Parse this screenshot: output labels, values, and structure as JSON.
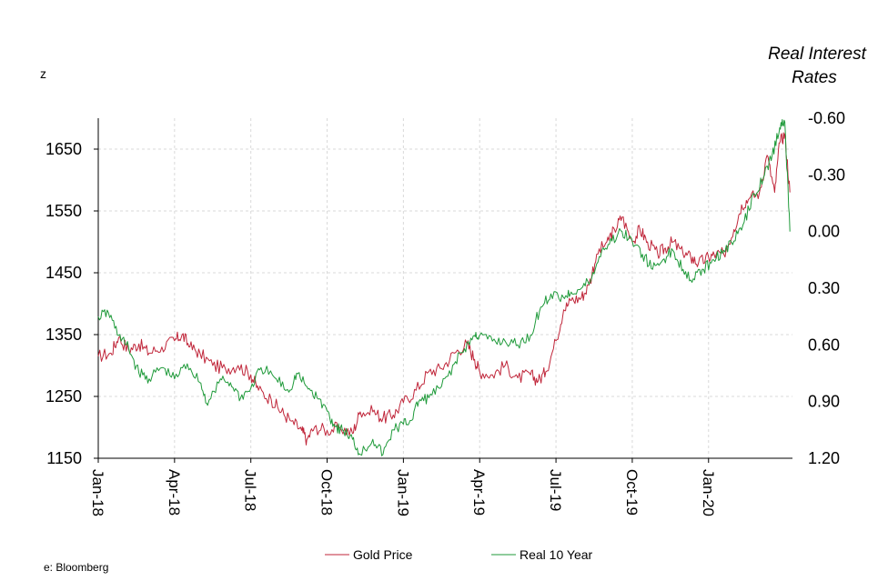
{
  "chart_data": {
    "type": "line",
    "left_title": "z",
    "right_title_line1": "Real Interest",
    "right_title_line2": "Rates",
    "source": "e: Bloomberg",
    "x_ticks": [
      "Jan-18",
      "Apr-18",
      "Jul-18",
      "Oct-18",
      "Jan-19",
      "Apr-19",
      "Jul-19",
      "Oct-19",
      "Jan-20"
    ],
    "y_left_ticks": [
      "1650",
      "1550",
      "1450",
      "1350",
      "1250",
      "1150"
    ],
    "y_left_tick_values": [
      1650,
      1550,
      1450,
      1350,
      1250,
      1150
    ],
    "y_left_range": [
      1150,
      1700
    ],
    "y_right_ticks": [
      "-0.60",
      "-0.30",
      "0.00",
      "0.30",
      "0.60",
      "0.90",
      "1.20"
    ],
    "y_right_tick_values": [
      -0.6,
      -0.3,
      0.0,
      0.3,
      0.6,
      0.9,
      1.2
    ],
    "y_right_range": [
      1.2,
      -0.6
    ],
    "y_right_inverted": true,
    "x_range": [
      0,
      26.3
    ],
    "x_unit": "months since Jan-18",
    "grid": true,
    "legend_placement": "bottom",
    "series": [
      {
        "name": "Gold Price",
        "axis": "left",
        "color": "#c0263a",
        "points": [
          [
            0,
            1315
          ],
          [
            0.5,
            1320
          ],
          [
            0.8,
            1345
          ],
          [
            1.2,
            1325
          ],
          [
            1.6,
            1335
          ],
          [
            2,
            1320
          ],
          [
            2.5,
            1330
          ],
          [
            3,
            1340
          ],
          [
            3.3,
            1350
          ],
          [
            3.6,
            1330
          ],
          [
            4,
            1320
          ],
          [
            4.5,
            1300
          ],
          [
            5,
            1295
          ],
          [
            5.5,
            1300
          ],
          [
            6,
            1285
          ],
          [
            6.3,
            1260
          ],
          [
            6.8,
            1245
          ],
          [
            7.2,
            1225
          ],
          [
            7.6,
            1210
          ],
          [
            8,
            1195
          ],
          [
            8.2,
            1180
          ],
          [
            8.5,
            1200
          ],
          [
            9,
            1195
          ],
          [
            9.5,
            1200
          ],
          [
            10,
            1190
          ],
          [
            10.3,
            1225
          ],
          [
            10.8,
            1225
          ],
          [
            11.2,
            1215
          ],
          [
            11.6,
            1220
          ],
          [
            12,
            1240
          ],
          [
            12.5,
            1260
          ],
          [
            13,
            1290
          ],
          [
            13.5,
            1295
          ],
          [
            14,
            1320
          ],
          [
            14.5,
            1335
          ],
          [
            14.8,
            1310
          ],
          [
            15,
            1290
          ],
          [
            15.5,
            1285
          ],
          [
            16,
            1300
          ],
          [
            16.5,
            1280
          ],
          [
            17,
            1285
          ],
          [
            17.3,
            1275
          ],
          [
            17.6,
            1290
          ],
          [
            18,
            1340
          ],
          [
            18.3,
            1390
          ],
          [
            18.6,
            1405
          ],
          [
            19,
            1410
          ],
          [
            19.3,
            1430
          ],
          [
            19.6,
            1480
          ],
          [
            20,
            1500
          ],
          [
            20.3,
            1520
          ],
          [
            20.6,
            1540
          ],
          [
            21,
            1500
          ],
          [
            21.3,
            1520
          ],
          [
            21.6,
            1500
          ],
          [
            22,
            1480
          ],
          [
            22.3,
            1490
          ],
          [
            22.6,
            1500
          ],
          [
            23,
            1480
          ],
          [
            23.3,
            1475
          ],
          [
            23.6,
            1465
          ],
          [
            24,
            1475
          ],
          [
            24.3,
            1480
          ],
          [
            24.6,
            1480
          ],
          [
            25,
            1520
          ],
          [
            25.3,
            1560
          ],
          [
            25.6,
            1570
          ],
          [
            26,
            1580
          ],
          [
            26.3,
            1640
          ],
          [
            26.6,
            1580
          ],
          [
            26.8,
            1660
          ],
          [
            27,
            1675
          ],
          [
            27.2,
            1580
          ]
        ]
      },
      {
        "name": "Real 10 Year",
        "axis": "right",
        "color": "#1f9a3a",
        "points": [
          [
            0,
            0.45
          ],
          [
            0.4,
            0.43
          ],
          [
            0.8,
            0.55
          ],
          [
            1.2,
            0.62
          ],
          [
            1.6,
            0.75
          ],
          [
            2,
            0.78
          ],
          [
            2.5,
            0.72
          ],
          [
            3,
            0.78
          ],
          [
            3.5,
            0.7
          ],
          [
            4,
            0.8
          ],
          [
            4.3,
            0.92
          ],
          [
            4.8,
            0.78
          ],
          [
            5.2,
            0.8
          ],
          [
            5.6,
            0.88
          ],
          [
            6,
            0.83
          ],
          [
            6.4,
            0.72
          ],
          [
            7,
            0.78
          ],
          [
            7.5,
            0.85
          ],
          [
            7.8,
            0.75
          ],
          [
            8.2,
            0.82
          ],
          [
            8.6,
            0.88
          ],
          [
            9,
            0.95
          ],
          [
            9.3,
            1.03
          ],
          [
            9.6,
            1.05
          ],
          [
            10,
            1.1
          ],
          [
            10.3,
            1.18
          ],
          [
            10.8,
            1.1
          ],
          [
            11.2,
            1.18
          ],
          [
            11.6,
            1.05
          ],
          [
            12,
            1.02
          ],
          [
            12.3,
            1.0
          ],
          [
            12.6,
            0.9
          ],
          [
            13,
            0.88
          ],
          [
            13.5,
            0.82
          ],
          [
            14,
            0.7
          ],
          [
            14.4,
            0.62
          ],
          [
            14.8,
            0.55
          ],
          [
            15,
            0.55
          ],
          [
            15.5,
            0.58
          ],
          [
            16,
            0.58
          ],
          [
            16.5,
            0.6
          ],
          [
            17,
            0.55
          ],
          [
            17.4,
            0.4
          ],
          [
            17.8,
            0.33
          ],
          [
            18.3,
            0.35
          ],
          [
            18.6,
            0.32
          ],
          [
            19,
            0.3
          ],
          [
            19.4,
            0.25
          ],
          [
            19.8,
            0.1
          ],
          [
            20.2,
            0.05
          ],
          [
            20.6,
            0.0
          ],
          [
            21,
            0.05
          ],
          [
            21.4,
            0.12
          ],
          [
            21.8,
            0.2
          ],
          [
            22.2,
            0.15
          ],
          [
            22.6,
            0.1
          ],
          [
            23,
            0.2
          ],
          [
            23.4,
            0.25
          ],
          [
            23.8,
            0.2
          ],
          [
            24.2,
            0.15
          ],
          [
            24.6,
            0.1
          ],
          [
            25,
            0.05
          ],
          [
            25.4,
            -0.05
          ],
          [
            25.8,
            -0.2
          ],
          [
            26.2,
            -0.3
          ],
          [
            26.5,
            -0.4
          ],
          [
            26.8,
            -0.55
          ],
          [
            27,
            -0.58
          ],
          [
            27.2,
            0.0
          ]
        ]
      }
    ]
  }
}
